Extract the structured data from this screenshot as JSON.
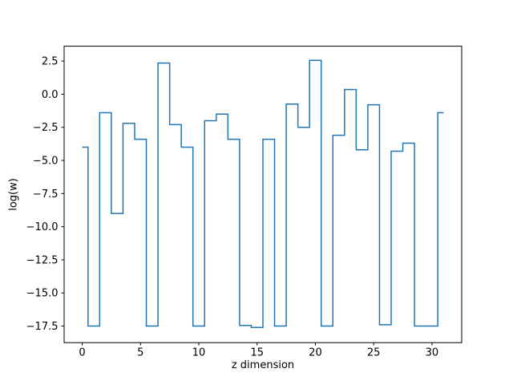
{
  "window": {
    "background": "#ffffff"
  },
  "chart_data": {
    "type": "line",
    "subtype": "steps-mid",
    "title": "",
    "xlabel": "z dimension",
    "ylabel": "log(w)",
    "x": [
      0,
      1,
      2,
      3,
      4,
      5,
      6,
      7,
      8,
      9,
      10,
      11,
      12,
      13,
      14,
      15,
      16,
      17,
      18,
      19,
      20,
      21,
      22,
      23,
      24,
      25,
      26,
      27,
      28,
      29,
      30,
      31
    ],
    "values": [
      -4.0,
      -17.5,
      -1.4,
      -9.0,
      -2.2,
      -3.4,
      -17.5,
      2.35,
      -2.3,
      -4.0,
      -17.5,
      -2.0,
      -1.5,
      -3.4,
      -17.45,
      -17.6,
      -3.4,
      -17.5,
      -0.75,
      -2.5,
      2.55,
      -17.5,
      -3.1,
      0.35,
      -4.2,
      -0.8,
      -17.4,
      -4.3,
      -3.7,
      -17.5,
      -17.5,
      -1.4
    ],
    "line_color": "#1f77b4",
    "line_width": 1.5,
    "axis_color": "#000000",
    "xlim": [
      -1.55,
      32.55
    ],
    "ylim": [
      -18.75,
      3.62
    ],
    "xticks": [
      0,
      5,
      10,
      15,
      20,
      25,
      30
    ],
    "xtick_labels": [
      "0",
      "5",
      "10",
      "15",
      "20",
      "25",
      "30"
    ],
    "yticks": [
      2.5,
      0.0,
      -2.5,
      -5.0,
      -7.5,
      -10.0,
      -12.5,
      -15.0,
      -17.5
    ],
    "ytick_labels": [
      "2.5",
      "0.0",
      "−2.5",
      "−5.0",
      "−7.5",
      "−10.0",
      "−12.5",
      "−15.0",
      "−17.5"
    ],
    "grid": false,
    "legend": null
  }
}
